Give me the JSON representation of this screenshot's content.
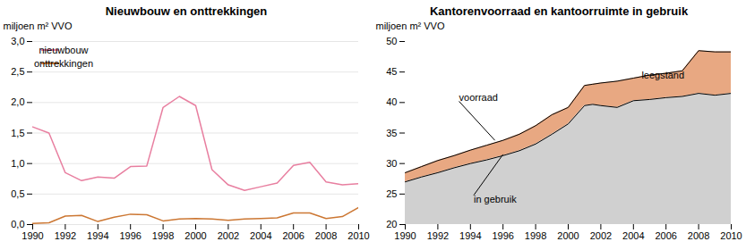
{
  "chart_data": [
    {
      "type": "line",
      "title": "Nieuwbouw en onttrekkingen",
      "ylabel": "miljoen m² VVO",
      "x": [
        1990,
        1991,
        1992,
        1993,
        1994,
        1995,
        1996,
        1997,
        1998,
        1999,
        2000,
        2001,
        2002,
        2003,
        2004,
        2005,
        2006,
        2007,
        2008,
        2009,
        2010
      ],
      "series": [
        {
          "name": "nieuwbouw",
          "color": "#e87fa0",
          "values": [
            1.6,
            1.5,
            0.85,
            0.72,
            0.78,
            0.76,
            0.95,
            0.96,
            1.92,
            2.1,
            1.95,
            0.9,
            0.65,
            0.56,
            0.62,
            0.68,
            0.97,
            1.02,
            0.7,
            0.65,
            0.67
          ]
        },
        {
          "name": "onttrekkingen",
          "color": "#cc7733",
          "values": [
            0.02,
            0.03,
            0.14,
            0.15,
            0.05,
            0.12,
            0.17,
            0.16,
            0.06,
            0.09,
            0.1,
            0.09,
            0.07,
            0.09,
            0.1,
            0.11,
            0.19,
            0.19,
            0.1,
            0.13,
            0.28
          ]
        }
      ],
      "xlim": [
        1990,
        2010
      ],
      "xticks": [
        1990,
        1992,
        1994,
        1996,
        1998,
        2000,
        2002,
        2004,
        2006,
        2008,
        2010
      ],
      "ylim": [
        0.0,
        3.0
      ],
      "yticks": [
        {
          "value": 0.0,
          "label": "0,0"
        },
        {
          "value": 0.5,
          "label": "0,5"
        },
        {
          "value": 1.0,
          "label": "1,0"
        },
        {
          "value": 1.5,
          "label": "1,5"
        },
        {
          "value": 2.0,
          "label": "2,0"
        },
        {
          "value": 2.5,
          "label": "2,5"
        },
        {
          "value": 3.0,
          "label": "3,0"
        }
      ],
      "grid": true,
      "legend": "upper left"
    },
    {
      "type": "area",
      "title": "Kantorenvoorraad en kantoorruimte in gebruik",
      "ylabel": "miljoen m² VVO",
      "x": [
        1990,
        1991,
        1992,
        1993,
        1994,
        1995,
        1996,
        1997,
        1998,
        1999,
        2000,
        2001,
        2001.5,
        2002,
        2003,
        2004,
        2005,
        2006,
        2007,
        2008,
        2009,
        2010
      ],
      "series": [
        {
          "name": "voorraad",
          "color": "#e8a882",
          "values": [
            28.5,
            29.5,
            30.5,
            31.3,
            32.2,
            33.0,
            33.8,
            34.8,
            36.2,
            38.0,
            39.2,
            42.8,
            43.0,
            43.2,
            43.5,
            44.0,
            44.5,
            44.8,
            45.2,
            48.5,
            48.3,
            48.3
          ]
        },
        {
          "name": "in gebruik",
          "color": "#d0d0d0",
          "values": [
            27.0,
            27.8,
            28.5,
            29.3,
            30.0,
            30.6,
            31.3,
            32.1,
            33.2,
            34.8,
            36.5,
            39.5,
            39.7,
            39.5,
            39.2,
            40.3,
            40.5,
            40.8,
            41.0,
            41.5,
            41.2,
            41.5
          ]
        }
      ],
      "xlim": [
        1990,
        2010
      ],
      "xticks": [
        1990,
        1992,
        1994,
        1996,
        1998,
        2000,
        2002,
        2004,
        2006,
        2008,
        2010
      ],
      "ylim": [
        20,
        50
      ],
      "yticks": [
        20,
        25,
        30,
        35,
        40,
        45,
        50
      ],
      "grid": false,
      "annotations": [
        {
          "text": "voorraad",
          "x": 1993.3,
          "y": 40.2,
          "xy": [
            1995.5,
            33.8
          ]
        },
        {
          "text": "in gebruik",
          "x": 1994.2,
          "y": 24.8,
          "xy": [
            1996.0,
            31.5
          ]
        },
        {
          "text": "leegstand",
          "x": 2004.5,
          "y": 44.5
        }
      ]
    }
  ]
}
